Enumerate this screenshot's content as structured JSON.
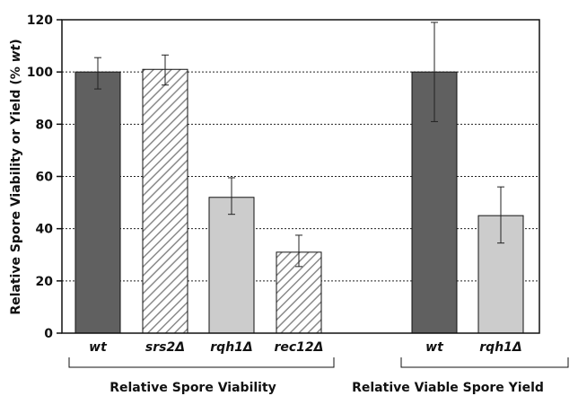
{
  "chart_data": {
    "type": "bar",
    "ylabel_parts": [
      "Relative Spore Viability or Yield (% ",
      "wt",
      ")"
    ],
    "ylim": [
      0,
      120
    ],
    "yticks": [
      0,
      20,
      40,
      60,
      80,
      100,
      120
    ],
    "grid": true,
    "categories": [
      "wt",
      "srs2Δ",
      "rqh1Δ",
      "rec12Δ",
      "wt",
      "rqh1Δ"
    ],
    "values": [
      100,
      101,
      52,
      31,
      100,
      45
    ],
    "error_low": [
      93.5,
      95,
      45.5,
      25.5,
      81,
      34.5
    ],
    "error_high": [
      105.5,
      106.5,
      59.5,
      37.5,
      119,
      56
    ],
    "bar_styles": [
      {
        "fill": "#606060",
        "pattern": "solid"
      },
      {
        "fill": "#ffffff",
        "pattern": "hatch",
        "hatch_color": "#8a8a8a"
      },
      {
        "fill": "#cccccc",
        "pattern": "solid"
      },
      {
        "fill": "#ffffff",
        "pattern": "hatch",
        "hatch_color": "#8a8a8a"
      },
      {
        "fill": "#606060",
        "pattern": "solid"
      },
      {
        "fill": "#cccccc",
        "pattern": "solid"
      }
    ],
    "groups": [
      {
        "label": "Relative Spore Viability",
        "members": [
          0,
          1,
          2,
          3
        ]
      },
      {
        "label": "Relative Viable Spore Yield",
        "members": [
          4,
          5
        ]
      }
    ]
  }
}
